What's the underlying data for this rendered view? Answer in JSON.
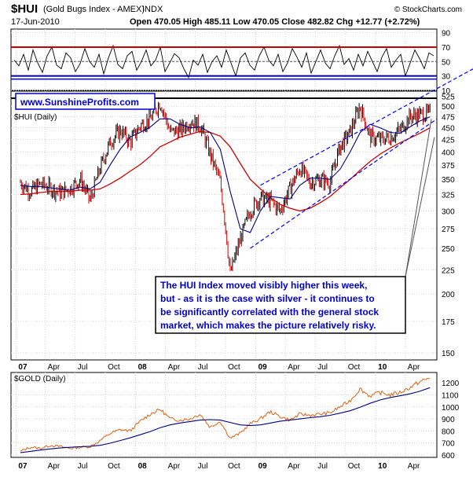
{
  "header": {
    "symbol": "$HUI",
    "description": "(Gold Bugs Index - AMEX)",
    "exchange": "INDX",
    "date": "17-Jun-2010",
    "ohlc": "Open 470.05   High 485.11   Low 470.05   Close 482.82   Chg +12.77 (+2.72%)",
    "credit": "© StockCharts.com"
  },
  "website": "www.SunshineProfits.com",
  "annotation": [
    "The HUI Index moved visibly higher this week,",
    "but - as it is the case with silver - it continues to",
    "be significantly correlated with the general stock",
    "market, which makes the picture relatively risky."
  ],
  "colors": {
    "price": "#000000",
    "up_bar": "#000000",
    "down_bar": "#cc0000",
    "ma_fast": "#000080",
    "ma_slow": "#cc0000",
    "trend_lines": "#0000ff",
    "gold_line": "#e06010",
    "gold_ma": "#000080",
    "rsi_overbought": "#cc0000",
    "rsi_oversold": "#0000aa",
    "resistance": "#000000",
    "annotation_text": "#0000cc",
    "website_text": "#0000cc"
  },
  "chart_data": [
    {
      "type": "line",
      "panel": "indicator",
      "title": "",
      "y_ticks": [
        10,
        30,
        50,
        70,
        90
      ],
      "ylim": [
        10,
        95
      ],
      "levels": {
        "overbought": 70,
        "oversold": 30
      },
      "series": [
        {
          "values": [
            52,
            44,
            60,
            38,
            66,
            48,
            35,
            58,
            70,
            45,
            40,
            62,
            55,
            36,
            47,
            68,
            50,
            42,
            60,
            33,
            55,
            72,
            46,
            40,
            58,
            64,
            38,
            50,
            66,
            44,
            52,
            70,
            36,
            48,
            61,
            55,
            40,
            28,
            52,
            45,
            60,
            35,
            50,
            58,
            42,
            66,
            48,
            30,
            55,
            62,
            45,
            38,
            58,
            70,
            52,
            44,
            60,
            36,
            48,
            68,
            56,
            42,
            62,
            34,
            50,
            66,
            48,
            40,
            58,
            72,
            46,
            54,
            38,
            60,
            44,
            64,
            50,
            36,
            56,
            68,
            42,
            52,
            60,
            30,
            48,
            66,
            54,
            40,
            62,
            58
          ]
        }
      ]
    },
    {
      "type": "line",
      "panel": "price",
      "title": "$HUI (Daily)",
      "x_ticks": [
        "07",
        "Apr",
        "Jul",
        "Oct",
        "08",
        "Apr",
        "Jul",
        "Oct",
        "09",
        "Apr",
        "Jul",
        "Oct",
        "10",
        "Apr"
      ],
      "y_ticks": [
        150,
        175,
        200,
        225,
        250,
        275,
        300,
        325,
        350,
        375,
        400,
        425,
        450,
        475,
        500,
        525
      ],
      "y_scale": "log",
      "ylim": [
        145,
        530
      ],
      "resistance": 520,
      "trend_channel": {
        "upper": [
          {
            "date": "2009-01",
            "value": 340
          },
          {
            "date": "2010-06",
            "value": 560
          }
        ],
        "lower": [
          {
            "date": "2008-12",
            "value": 250
          },
          {
            "date": "2010-06",
            "value": 470
          }
        ],
        "support": [
          {
            "date": "2010-06",
            "value": 205
          },
          {
            "date": "2010-06",
            "value": 425
          }
        ]
      },
      "dates": [
        "2007-01",
        "2007-02",
        "2007-03",
        "2007-04",
        "2007-05",
        "2007-06",
        "2007-07",
        "2007-08",
        "2007-09",
        "2007-10",
        "2007-11",
        "2007-12",
        "2008-01",
        "2008-02",
        "2008-03",
        "2008-04",
        "2008-05",
        "2008-06",
        "2008-07",
        "2008-08",
        "2008-09",
        "2008-10",
        "2008-11",
        "2008-12",
        "2009-01",
        "2009-02",
        "2009-03",
        "2009-04",
        "2009-05",
        "2009-06",
        "2009-07",
        "2009-08",
        "2009-09",
        "2009-10",
        "2009-11",
        "2009-12",
        "2010-01",
        "2010-02",
        "2010-03",
        "2010-04",
        "2010-05",
        "2010-06"
      ],
      "series": [
        {
          "name": "HUI",
          "values": [
            345,
            330,
            342,
            336,
            328,
            335,
            350,
            315,
            370,
            420,
            445,
            420,
            455,
            470,
            510,
            440,
            445,
            465,
            455,
            395,
            345,
            220,
            260,
            300,
            320,
            315,
            300,
            335,
            370,
            345,
            350,
            345,
            410,
            440,
            500,
            430,
            425,
            430,
            445,
            475,
            480,
            483
          ]
        },
        {
          "name": "MA50",
          "values": [
            340,
            338,
            338,
            336,
            334,
            332,
            337,
            334,
            345,
            375,
            405,
            430,
            440,
            452,
            470,
            470,
            458,
            450,
            452,
            440,
            405,
            330,
            275,
            270,
            300,
            322,
            320,
            318,
            340,
            352,
            352,
            350,
            368,
            400,
            440,
            458,
            450,
            440,
            438,
            452,
            465,
            475
          ]
        },
        {
          "name": "MA200",
          "values": [
            325,
            326,
            328,
            330,
            330,
            330,
            332,
            332,
            334,
            342,
            352,
            364,
            376,
            392,
            410,
            420,
            430,
            436,
            442,
            440,
            432,
            410,
            378,
            350,
            334,
            320,
            310,
            304,
            300,
            304,
            312,
            322,
            336,
            350,
            366,
            382,
            396,
            408,
            418,
            428,
            438,
            450
          ]
        }
      ]
    },
    {
      "type": "line",
      "panel": "gold",
      "title": "$GOLD (Daily)",
      "x_ticks": [
        "07",
        "Apr",
        "Jul",
        "Oct",
        "08",
        "Apr",
        "Jul",
        "Oct",
        "09",
        "Apr",
        "Jul",
        "Oct",
        "10",
        "Apr"
      ],
      "y_ticks": [
        600,
        700,
        800,
        900,
        1000,
        1100,
        1200
      ],
      "ylim": [
        580,
        1260
      ],
      "dates": [
        "2007-01",
        "2007-02",
        "2007-03",
        "2007-04",
        "2007-05",
        "2007-06",
        "2007-07",
        "2007-08",
        "2007-09",
        "2007-10",
        "2007-11",
        "2007-12",
        "2008-01",
        "2008-02",
        "2008-03",
        "2008-04",
        "2008-05",
        "2008-06",
        "2008-07",
        "2008-08",
        "2008-09",
        "2008-10",
        "2008-11",
        "2008-12",
        "2009-01",
        "2009-02",
        "2009-03",
        "2009-04",
        "2009-05",
        "2009-06",
        "2009-07",
        "2009-08",
        "2009-09",
        "2009-10",
        "2009-11",
        "2009-12",
        "2010-01",
        "2010-02",
        "2010-03",
        "2010-04",
        "2010-05",
        "2010-06"
      ],
      "series": [
        {
          "name": "GOLD",
          "values": [
            630,
            665,
            655,
            680,
            670,
            655,
            665,
            670,
            720,
            780,
            810,
            800,
            880,
            940,
            980,
            900,
            890,
            900,
            940,
            830,
            880,
            740,
            780,
            860,
            900,
            960,
            920,
            890,
            940,
            930,
            940,
            950,
            1000,
            1050,
            1150,
            1090,
            1120,
            1100,
            1120,
            1160,
            1210,
            1240
          ]
        },
        {
          "name": "MA200",
          "values": [
            620,
            630,
            640,
            650,
            658,
            664,
            668,
            672,
            680,
            698,
            720,
            742,
            768,
            795,
            826,
            850,
            866,
            878,
            890,
            894,
            890,
            870,
            850,
            844,
            850,
            866,
            880,
            890,
            900,
            910,
            918,
            930,
            948,
            968,
            998,
            1030,
            1058,
            1078,
            1092,
            1108,
            1130,
            1160
          ]
        }
      ]
    }
  ]
}
